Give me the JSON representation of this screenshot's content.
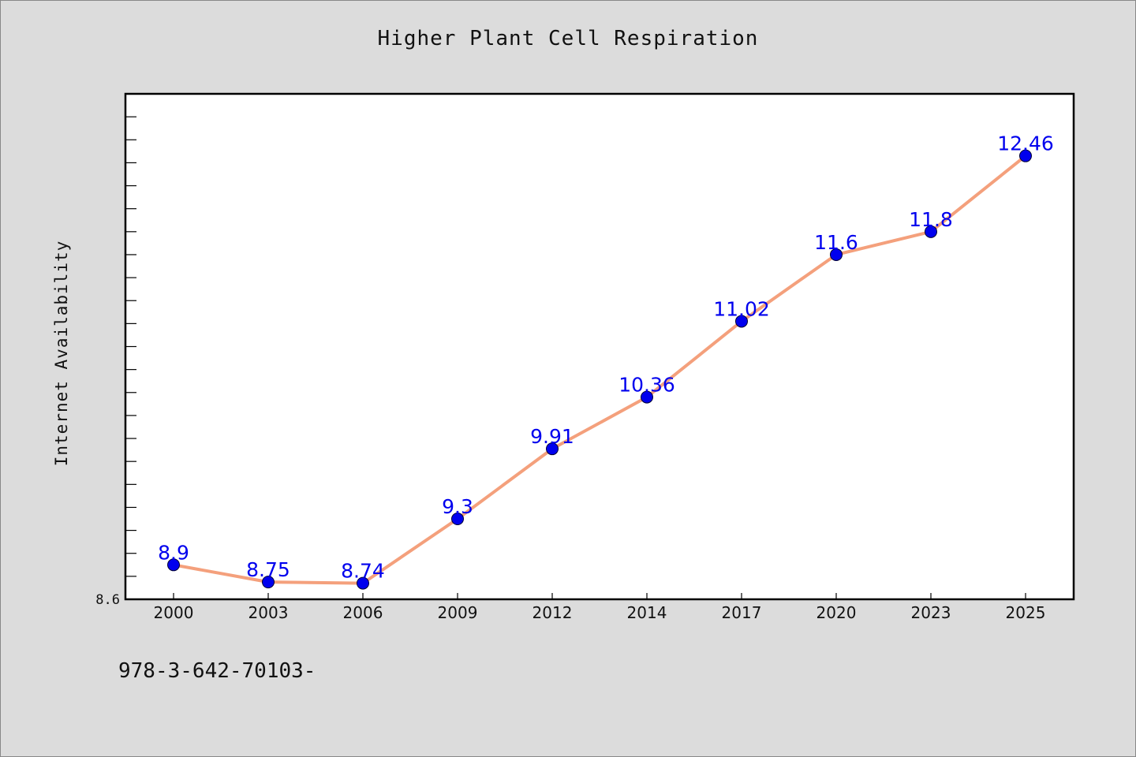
{
  "page": {
    "background": "#dcdcdc",
    "footer_text": "978-3-642-70103-"
  },
  "chart_data": {
    "type": "line",
    "title": "Higher Plant Cell Respiration",
    "xlabel": "",
    "ylabel": "Internet Availability",
    "categories": [
      "2000",
      "2003",
      "2006",
      "2009",
      "2012",
      "2014",
      "2017",
      "2020",
      "2023",
      "2025"
    ],
    "series": [
      {
        "values": [
          8.9,
          8.75,
          8.74,
          9.3,
          9.91,
          10.36,
          11.02,
          11.6,
          11.8,
          12.46
        ],
        "data_labels": [
          "8.9",
          "8.75",
          "8.74",
          "9.3",
          "9.91",
          "10.36",
          "11.02",
          "11.6",
          "11.8",
          "12.46"
        ],
        "line_color": "#f4a07c",
        "marker_color": "#0000ee",
        "label_color": "#0000ee"
      }
    ],
    "ylim": [
      8.6,
      13.0
    ],
    "y_tick_labels": [
      "8.6"
    ],
    "grid": false,
    "legend": "none",
    "plot_background": "#ffffff"
  }
}
